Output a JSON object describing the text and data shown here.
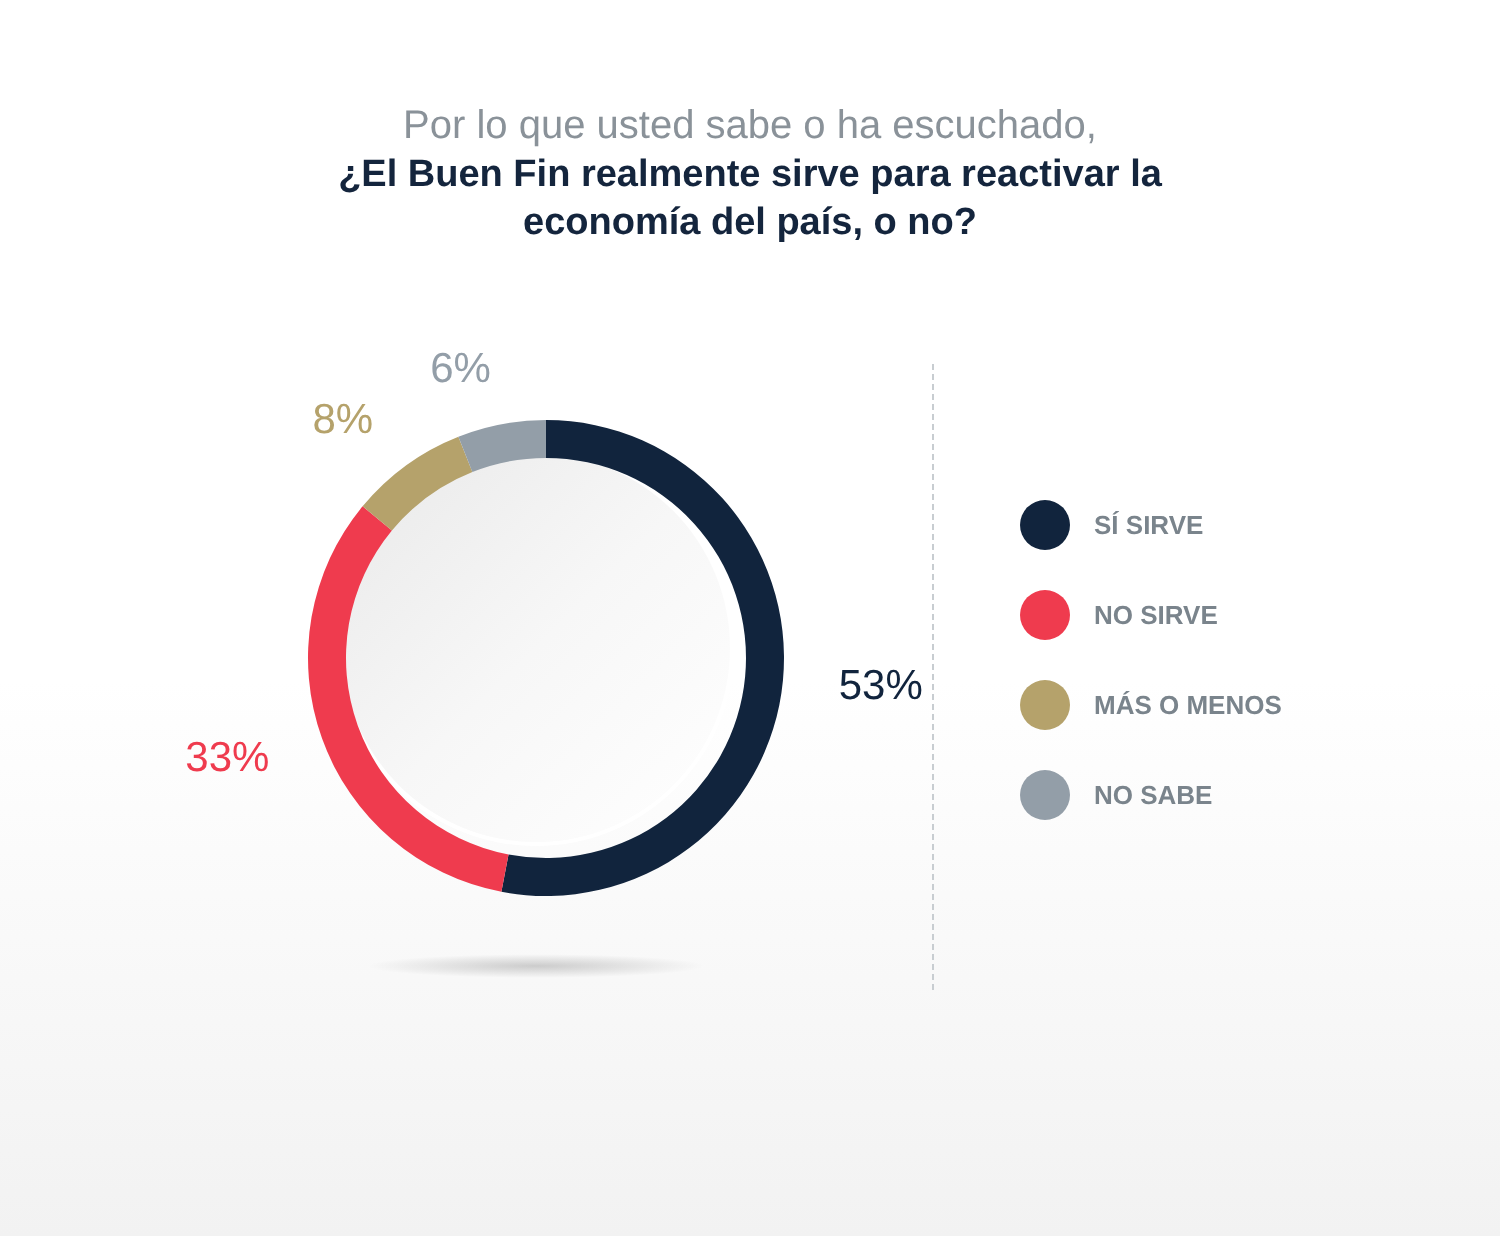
{
  "chart_data": {
    "type": "donut",
    "title": "Por lo que usted sabe o ha escuchado,",
    "subtitle": "¿El Buen Fin realmente sirve para reactivar la economía del país, o no?",
    "categories": [
      "SÍ SIRVE",
      "NO SIRVE",
      "MÁS O MENOS",
      "NO SABE"
    ],
    "values": [
      53,
      33,
      8,
      6
    ],
    "value_labels": [
      "53%",
      "33%",
      "8%",
      "6%"
    ],
    "colors": [
      "#11243d",
      "#ef3b4e",
      "#b5a26b",
      "#939ea8"
    ],
    "legend": "right"
  }
}
